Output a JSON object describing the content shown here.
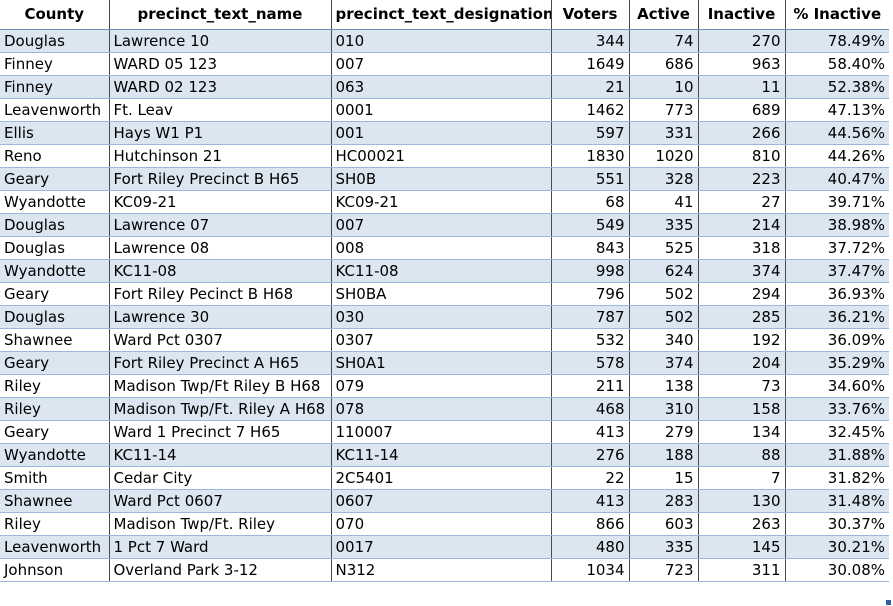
{
  "headers": [
    "County",
    "precinct_text_name",
    "precinct_text_designation",
    "Voters",
    "Active",
    "Inactive",
    "% Inactive"
  ],
  "rows": [
    [
      "Douglas",
      "Lawrence 10",
      "010",
      "344",
      "74",
      "270",
      "78.49%"
    ],
    [
      "Finney",
      "WARD 05 123",
      "007",
      "1649",
      "686",
      "963",
      "58.40%"
    ],
    [
      "Finney",
      "WARD 02 123",
      "063",
      "21",
      "10",
      "11",
      "52.38%"
    ],
    [
      "Leavenworth",
      "Ft. Leav",
      "0001",
      "1462",
      "773",
      "689",
      "47.13%"
    ],
    [
      "Ellis",
      "Hays W1 P1",
      "001",
      "597",
      "331",
      "266",
      "44.56%"
    ],
    [
      "Reno",
      "Hutchinson 21",
      "HC00021",
      "1830",
      "1020",
      "810",
      "44.26%"
    ],
    [
      "Geary",
      "Fort Riley Precinct B H65",
      "SH0B",
      "551",
      "328",
      "223",
      "40.47%"
    ],
    [
      "Wyandotte",
      "KC09-21",
      "KC09-21",
      "68",
      "41",
      "27",
      "39.71%"
    ],
    [
      "Douglas",
      "Lawrence 07",
      "007",
      "549",
      "335",
      "214",
      "38.98%"
    ],
    [
      "Douglas",
      "Lawrence 08",
      "008",
      "843",
      "525",
      "318",
      "37.72%"
    ],
    [
      "Wyandotte",
      "KC11-08",
      "KC11-08",
      "998",
      "624",
      "374",
      "37.47%"
    ],
    [
      "Geary",
      "Fort Riley Pecinct B H68",
      "SH0BA",
      "796",
      "502",
      "294",
      "36.93%"
    ],
    [
      "Douglas",
      "Lawrence 30",
      "030",
      "787",
      "502",
      "285",
      "36.21%"
    ],
    [
      "Shawnee",
      "Ward Pct 0307",
      "0307",
      "532",
      "340",
      "192",
      "36.09%"
    ],
    [
      "Geary",
      "Fort Riley Precinct A H65",
      "SH0A1",
      "578",
      "374",
      "204",
      "35.29%"
    ],
    [
      "Riley",
      "Madison Twp/Ft Riley B H68",
      "079",
      "211",
      "138",
      "73",
      "34.60%"
    ],
    [
      "Riley",
      "Madison Twp/Ft. Riley A H68",
      "078",
      "468",
      "310",
      "158",
      "33.76%"
    ],
    [
      "Geary",
      "Ward 1 Precinct 7 H65",
      "110007",
      "413",
      "279",
      "134",
      "32.45%"
    ],
    [
      "Wyandotte",
      "KC11-14",
      "KC11-14",
      "276",
      "188",
      "88",
      "31.88%"
    ],
    [
      "Smith",
      "Cedar City",
      "2C5401",
      "22",
      "15",
      "7",
      "31.82%"
    ],
    [
      "Shawnee",
      "Ward Pct 0607",
      "0607",
      "413",
      "283",
      "130",
      "31.48%"
    ],
    [
      "Riley",
      "Madison Twp/Ft. Riley",
      "070",
      "866",
      "603",
      "263",
      "30.37%"
    ],
    [
      "Leavenworth",
      "1 Pct 7 Ward",
      "0017",
      "480",
      "335",
      "145",
      "30.21%"
    ],
    [
      "Johnson",
      "Overland Park 3-12",
      "N312",
      "1034",
      "723",
      "311",
      "30.08%"
    ]
  ]
}
